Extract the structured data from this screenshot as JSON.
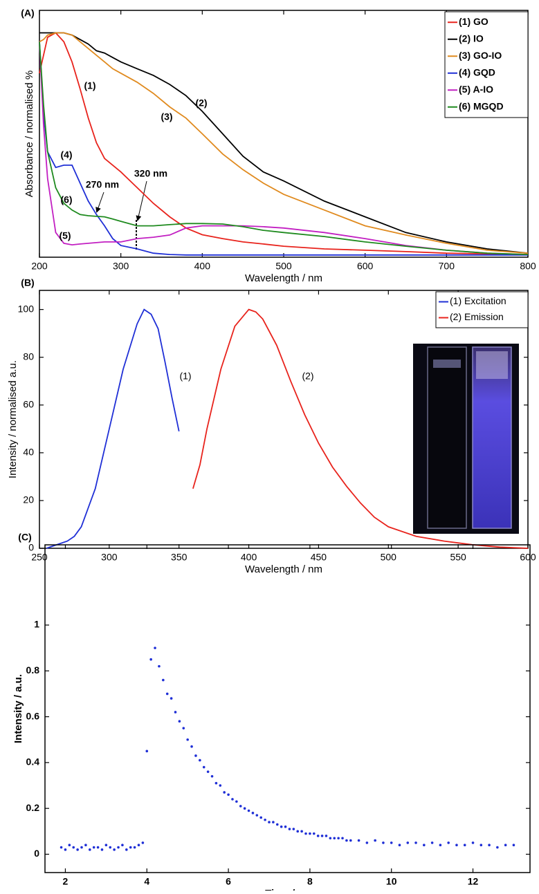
{
  "chart_data": [
    {
      "type": "line",
      "label": "(A)",
      "x_label": "Wavelength / nm",
      "y_label": "Absorbance / normalised %",
      "x": [
        200,
        205,
        210,
        220,
        230,
        240,
        250,
        260,
        270,
        280,
        290,
        300,
        320,
        340,
        360,
        380,
        400,
        425,
        450,
        475,
        500,
        550,
        600,
        650,
        700,
        750,
        800
      ],
      "series": [
        {
          "name": "(1) GO",
          "color": "#e8231c",
          "values": [
            0.82,
            0.9,
            0.98,
            1.0,
            0.96,
            0.87,
            0.75,
            0.62,
            0.51,
            0.44,
            0.41,
            0.38,
            0.31,
            0.24,
            0.18,
            0.13,
            0.1,
            0.083,
            0.068,
            0.059,
            0.049,
            0.037,
            0.031,
            0.025,
            0.018,
            0.015,
            0.012
          ]
        },
        {
          "name": "(2) IO",
          "color": "#000000",
          "values": [
            1.0,
            1.0,
            1.0,
            1.0,
            1.0,
            0.99,
            0.97,
            0.95,
            0.92,
            0.91,
            0.89,
            0.87,
            0.84,
            0.81,
            0.77,
            0.72,
            0.65,
            0.55,
            0.45,
            0.38,
            0.34,
            0.25,
            0.18,
            0.11,
            0.068,
            0.037,
            0.018
          ]
        },
        {
          "name": "(3) GO-IO",
          "color": "#e08a1e",
          "values": [
            0.96,
            0.97,
            0.99,
            1.0,
            1.0,
            0.99,
            0.96,
            0.93,
            0.9,
            0.87,
            0.84,
            0.82,
            0.78,
            0.73,
            0.67,
            0.62,
            0.55,
            0.46,
            0.39,
            0.33,
            0.28,
            0.21,
            0.14,
            0.099,
            0.062,
            0.031,
            0.018
          ]
        },
        {
          "name": "(4) GQD",
          "color": "#1f2fd6",
          "values": [
            0.96,
            0.64,
            0.47,
            0.4,
            0.41,
            0.41,
            0.33,
            0.25,
            0.19,
            0.14,
            0.083,
            0.052,
            0.037,
            0.018,
            0.012,
            0.01,
            0.01,
            0.01,
            0.01,
            0.01,
            0.01,
            0.01,
            0.01,
            0.01,
            0.01,
            0.01,
            0.01
          ]
        },
        {
          "name": "(5) A-IO",
          "color": "#c21fc2",
          "values": [
            0.96,
            0.59,
            0.35,
            0.11,
            0.062,
            0.055,
            0.059,
            0.062,
            0.065,
            0.068,
            0.068,
            0.068,
            0.083,
            0.089,
            0.099,
            0.13,
            0.14,
            0.14,
            0.14,
            0.136,
            0.13,
            0.11,
            0.083,
            0.052,
            0.031,
            0.018,
            0.012
          ]
        },
        {
          "name": "(6) MGQD",
          "color": "#1e8a1e",
          "values": [
            0.96,
            0.68,
            0.47,
            0.31,
            0.24,
            0.21,
            0.19,
            0.185,
            0.182,
            0.18,
            0.17,
            0.16,
            0.14,
            0.14,
            0.145,
            0.15,
            0.15,
            0.148,
            0.136,
            0.12,
            0.11,
            0.092,
            0.068,
            0.049,
            0.031,
            0.018,
            0.012
          ]
        }
      ],
      "xlim": [
        200,
        800
      ],
      "xticks": [
        200,
        300,
        400,
        500,
        600,
        700,
        800
      ],
      "ylim": [
        0,
        1.1
      ],
      "legend": "upper right",
      "annotations": [
        "(1)",
        "(2)",
        "(3)",
        "(4)",
        "(5)",
        "(6)",
        "270 nm",
        "320 nm"
      ]
    },
    {
      "type": "line",
      "label": "(B)",
      "x_label": "Wavelength / nm",
      "y_label": "Intensity / normalised a.u.",
      "series": [
        {
          "name": "(1) Excitation",
          "color": "#1f2fd6",
          "x": [
            255,
            260,
            270,
            275,
            280,
            290,
            300,
            310,
            320,
            325,
            330,
            335,
            340,
            345,
            350
          ],
          "values": [
            0,
            1,
            3,
            5,
            9,
            25,
            50,
            75,
            94,
            100,
            98,
            92,
            78,
            63,
            49
          ]
        },
        {
          "name": "(2) Emission",
          "color": "#e8231c",
          "x": [
            360,
            365,
            370,
            380,
            390,
            400,
            405,
            410,
            420,
            430,
            440,
            450,
            460,
            470,
            480,
            490,
            500,
            520,
            540,
            560,
            580,
            600
          ],
          "values": [
            25,
            35,
            50,
            75,
            93,
            100,
            99,
            96,
            85,
            70,
            56,
            44,
            34,
            26,
            19,
            13,
            9,
            5,
            3,
            1.5,
            0.5,
            0
          ]
        }
      ],
      "xlim": [
        250,
        600
      ],
      "xticks": [
        250,
        300,
        350,
        400,
        450,
        500,
        550,
        600
      ],
      "ylim": [
        0,
        108
      ],
      "yticks": [
        0,
        20,
        40,
        60,
        80,
        100
      ],
      "legend": "upper right",
      "annotations": [
        "(1)",
        "(2)"
      ]
    },
    {
      "type": "scatter",
      "label": "(C)",
      "x_label": "Time / ns",
      "y_label": "Intensity / a.u.",
      "color": "#1f2fd6",
      "x": [
        1.9,
        2.0,
        2.1,
        2.2,
        2.3,
        2.4,
        2.5,
        2.6,
        2.7,
        2.8,
        2.9,
        3.0,
        3.1,
        3.2,
        3.3,
        3.4,
        3.5,
        3.6,
        3.7,
        3.8,
        3.9,
        4.0,
        4.1,
        4.2,
        4.3,
        4.4,
        4.5,
        4.6,
        4.7,
        4.8,
        4.9,
        5.0,
        5.1,
        5.2,
        5.3,
        5.4,
        5.5,
        5.6,
        5.7,
        5.8,
        5.9,
        6.0,
        6.1,
        6.2,
        6.3,
        6.4,
        6.5,
        6.6,
        6.7,
        6.8,
        6.9,
        7.0,
        7.1,
        7.2,
        7.3,
        7.4,
        7.5,
        7.6,
        7.7,
        7.8,
        7.9,
        8.0,
        8.1,
        8.2,
        8.3,
        8.4,
        8.5,
        8.6,
        8.7,
        8.8,
        8.9,
        9.0,
        9.2,
        9.4,
        9.6,
        9.8,
        10.0,
        10.2,
        10.4,
        10.6,
        10.8,
        11.0,
        11.2,
        11.4,
        11.6,
        11.8,
        12.0,
        12.2,
        12.4,
        12.6,
        12.8,
        13.0
      ],
      "values": [
        0.03,
        0.02,
        0.04,
        0.03,
        0.02,
        0.03,
        0.04,
        0.02,
        0.03,
        0.03,
        0.02,
        0.04,
        0.03,
        0.02,
        0.03,
        0.04,
        0.02,
        0.03,
        0.03,
        0.04,
        0.05,
        0.45,
        0.85,
        0.9,
        0.82,
        0.76,
        0.7,
        0.68,
        0.62,
        0.58,
        0.55,
        0.5,
        0.47,
        0.43,
        0.41,
        0.38,
        0.36,
        0.34,
        0.31,
        0.3,
        0.27,
        0.26,
        0.24,
        0.23,
        0.21,
        0.2,
        0.19,
        0.18,
        0.17,
        0.16,
        0.15,
        0.14,
        0.14,
        0.13,
        0.12,
        0.12,
        0.11,
        0.11,
        0.1,
        0.1,
        0.09,
        0.09,
        0.09,
        0.08,
        0.08,
        0.08,
        0.07,
        0.07,
        0.07,
        0.07,
        0.06,
        0.06,
        0.06,
        0.05,
        0.06,
        0.05,
        0.05,
        0.04,
        0.05,
        0.05,
        0.04,
        0.05,
        0.04,
        0.05,
        0.04,
        0.04,
        0.05,
        0.04,
        0.04,
        0.03,
        0.04,
        0.04
      ],
      "xlim": [
        1.5,
        13.4
      ],
      "xticks": [
        2,
        4,
        6,
        8,
        10,
        12
      ],
      "ylim": [
        -0.08,
        1.35
      ],
      "yticks": [
        0,
        0.2,
        0.4,
        0.6,
        0.8,
        1
      ]
    }
  ]
}
